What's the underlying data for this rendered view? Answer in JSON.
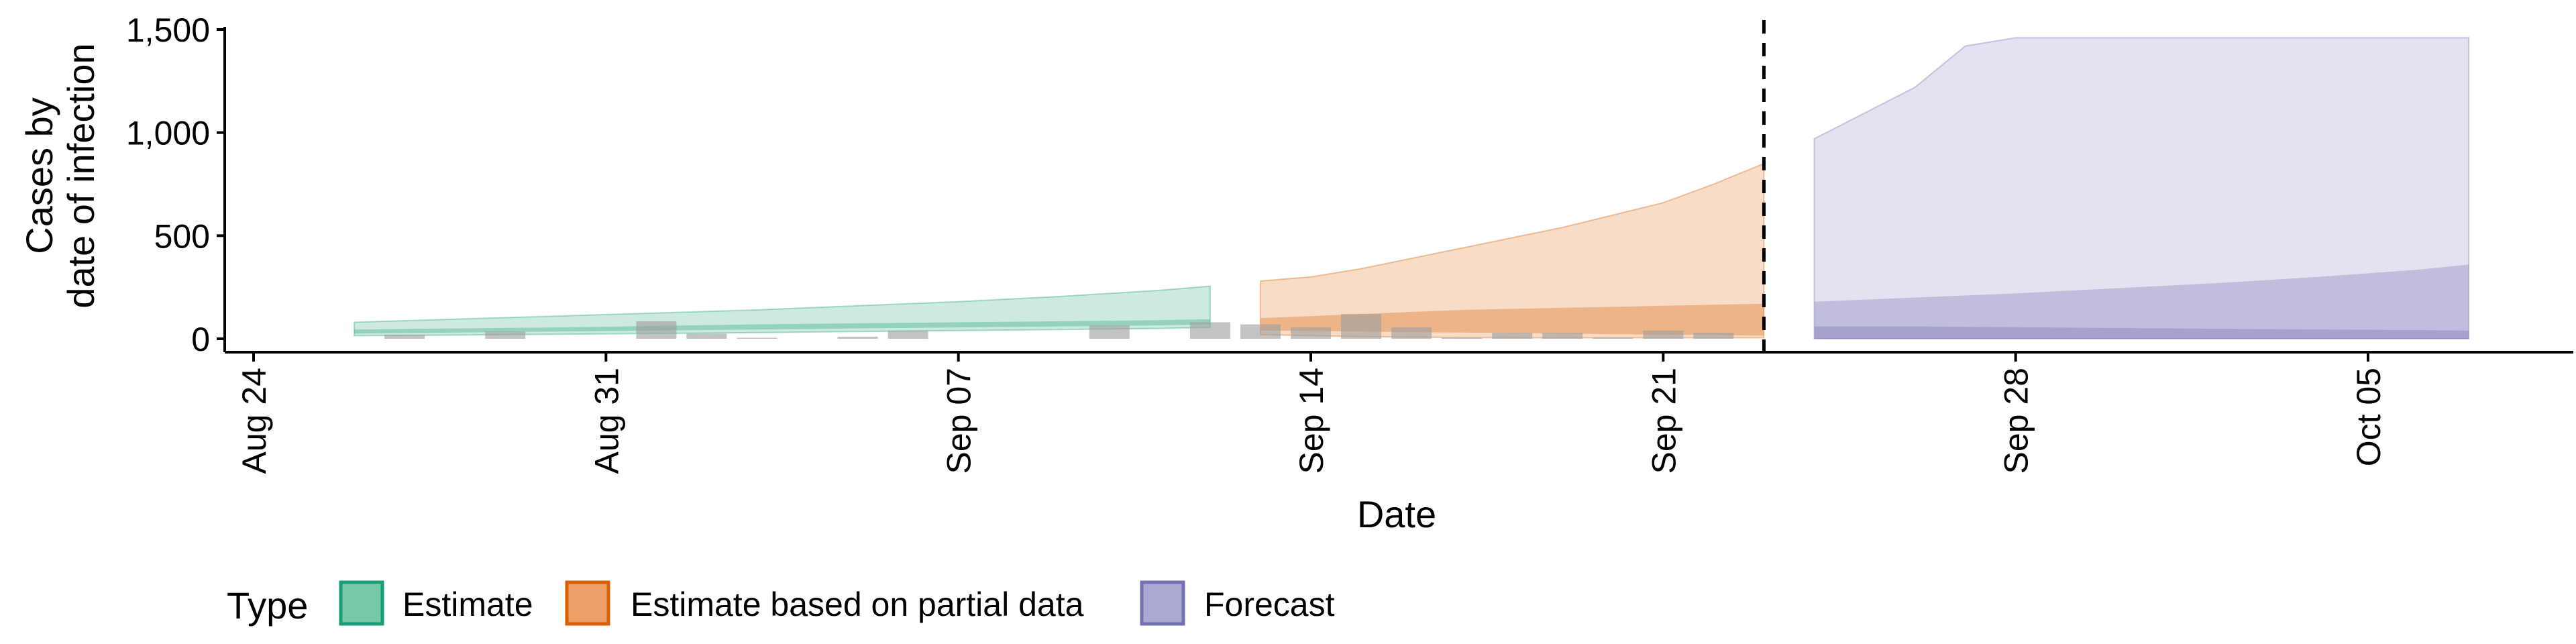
{
  "chart_data": {
    "type": "area",
    "xlabel": "Date",
    "ylabel_lines": [
      "Cases by",
      "date of infection"
    ],
    "ylim": [
      0,
      1500
    ],
    "yticks": [
      0,
      500,
      1000,
      1500
    ],
    "ytick_labels": [
      "0",
      "500",
      "1,000",
      "1,500"
    ],
    "xticks": [
      "2020-08-24",
      "2020-08-31",
      "2020-09-07",
      "2020-09-14",
      "2020-09-21",
      "2020-09-28",
      "2020-10-05"
    ],
    "xtick_labels": [
      "Aug 24",
      "Aug 31",
      "Sep 07",
      "Sep 14",
      "Sep 21",
      "Sep 28",
      "Oct 05"
    ],
    "vline_date": "2020-09-23",
    "legend": {
      "title": "Type",
      "position": "bottom",
      "entries": [
        "Estimate",
        "Estimate based on partial data",
        "Forecast"
      ]
    },
    "colors": {
      "estimate_fill": "#1b9e77",
      "estimate_border": "#1b9e77",
      "partial_fill": "#d95f02",
      "partial_border": "#d95f02",
      "forecast_fill": "#7570b3",
      "forecast_border": "#7570b3",
      "legend_estimate": "#78c8aa",
      "legend_partial": "#eda068",
      "legend_forecast": "#aaa9d2",
      "reported": "#9e9e9e",
      "axis": "#000000"
    },
    "reported_cases": [
      {
        "date": "2020-08-27",
        "value": 20
      },
      {
        "date": "2020-08-29",
        "value": 35
      },
      {
        "date": "2020-09-01",
        "value": 85
      },
      {
        "date": "2020-09-02",
        "value": 25
      },
      {
        "date": "2020-09-03",
        "value": 5
      },
      {
        "date": "2020-09-05",
        "value": 10
      },
      {
        "date": "2020-09-06",
        "value": 40
      },
      {
        "date": "2020-09-10",
        "value": 65
      },
      {
        "date": "2020-09-12",
        "value": 80
      },
      {
        "date": "2020-09-13",
        "value": 70
      },
      {
        "date": "2020-09-14",
        "value": 55
      },
      {
        "date": "2020-09-15",
        "value": 120
      },
      {
        "date": "2020-09-16",
        "value": 55
      },
      {
        "date": "2020-09-17",
        "value": 5
      },
      {
        "date": "2020-09-18",
        "value": 30
      },
      {
        "date": "2020-09-19",
        "value": 30
      },
      {
        "date": "2020-09-20",
        "value": 5
      },
      {
        "date": "2020-09-21",
        "value": 40
      },
      {
        "date": "2020-09-22",
        "value": 30
      }
    ],
    "series": [
      {
        "name": "Estimate",
        "x": [
          "2020-08-26",
          "2020-08-28",
          "2020-08-30",
          "2020-09-01",
          "2020-09-03",
          "2020-09-05",
          "2020-09-07",
          "2020-09-09",
          "2020-09-11",
          "2020-09-12"
        ],
        "outer_lower": [
          15,
          18,
          22,
          26,
          30,
          35,
          40,
          45,
          50,
          55
        ],
        "outer_upper": [
          80,
          95,
          110,
          125,
          140,
          160,
          180,
          205,
          235,
          255
        ],
        "inner_lower": [
          25,
          30,
          35,
          40,
          45,
          50,
          55,
          60,
          65,
          70
        ],
        "inner_upper": [
          45,
          50,
          55,
          62,
          70,
          75,
          80,
          85,
          90,
          95
        ]
      },
      {
        "name": "Estimate based on partial data",
        "x": [
          "2020-09-13",
          "2020-09-14",
          "2020-09-15",
          "2020-09-16",
          "2020-09-17",
          "2020-09-18",
          "2020-09-19",
          "2020-09-20",
          "2020-09-21",
          "2020-09-22",
          "2020-09-23"
        ],
        "outer_lower": [
          20,
          15,
          10,
          8,
          6,
          5,
          5,
          5,
          5,
          5,
          5
        ],
        "outer_upper": [
          280,
          300,
          340,
          390,
          440,
          490,
          540,
          600,
          660,
          750,
          850
        ],
        "inner_lower": [
          40,
          38,
          35,
          32,
          30,
          28,
          25,
          22,
          20,
          18,
          15
        ],
        "inner_upper": [
          100,
          110,
          120,
          130,
          140,
          145,
          150,
          155,
          160,
          165,
          170
        ]
      },
      {
        "name": "Forecast",
        "x": [
          "2020-09-24",
          "2020-09-26",
          "2020-09-27",
          "2020-09-28",
          "2020-09-30",
          "2020-10-02",
          "2020-10-04",
          "2020-10-06",
          "2020-10-07"
        ],
        "outer_lower": [
          0,
          0,
          0,
          0,
          0,
          0,
          0,
          0,
          0
        ],
        "outer_upper": [
          970,
          1220,
          1420,
          1460,
          1460,
          1460,
          1460,
          1460,
          1460
        ],
        "inner_lower": [
          0,
          0,
          0,
          0,
          0,
          0,
          0,
          0,
          0
        ],
        "inner_upper": [
          180,
          200,
          210,
          220,
          245,
          270,
          300,
          335,
          360
        ],
        "core_lower": [
          0,
          0,
          0,
          0,
          0,
          0,
          0,
          0,
          0
        ],
        "core_upper": [
          60,
          60,
          58,
          56,
          52,
          48,
          45,
          42,
          40
        ]
      }
    ]
  }
}
